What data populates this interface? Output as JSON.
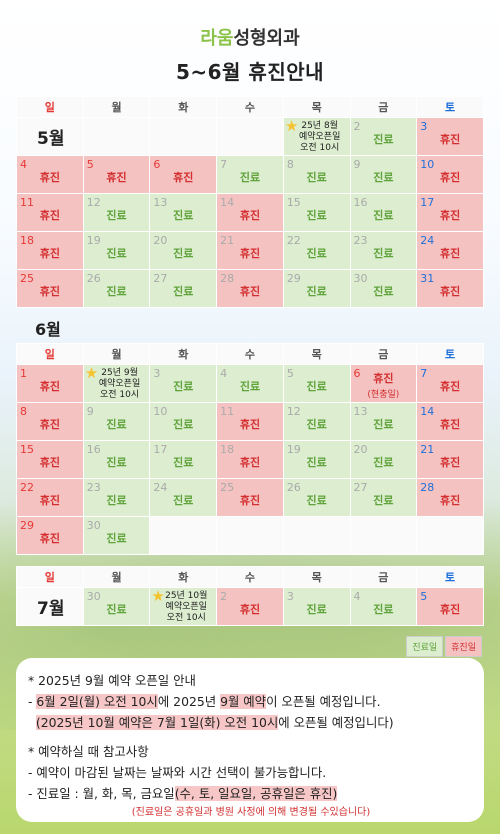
{
  "header": {
    "brand_green": "라움",
    "brand_dark": "성형외과",
    "title": "5~6월 휴진안내"
  },
  "weekdays": [
    "일",
    "월",
    "화",
    "수",
    "목",
    "금",
    "토"
  ],
  "status": {
    "off": "휴진",
    "on": "진료"
  },
  "may": {
    "label": "5월",
    "note": {
      "star": "★",
      "line1": "25년 8월",
      "line2": "예약오픈일",
      "line3": "오전 10시"
    },
    "days": [
      "2",
      "3",
      "4",
      "5",
      "6",
      "7",
      "8",
      "9",
      "10",
      "11",
      "12",
      "13",
      "14",
      "15",
      "16",
      "17",
      "18",
      "19",
      "20",
      "21",
      "22",
      "23",
      "24",
      "25",
      "26",
      "27",
      "28",
      "29",
      "30",
      "31"
    ]
  },
  "june": {
    "label": "6월",
    "note": {
      "star": "★",
      "line1": "25년 9월",
      "line2": "예약오픈일",
      "line3": "오전 10시"
    },
    "holiday_sub": "(현충일)",
    "days": [
      "1",
      "3",
      "4",
      "5",
      "6",
      "7",
      "8",
      "9",
      "10",
      "11",
      "12",
      "13",
      "14",
      "15",
      "16",
      "17",
      "18",
      "19",
      "20",
      "21",
      "22",
      "23",
      "24",
      "25",
      "26",
      "27",
      "28",
      "29",
      "30"
    ]
  },
  "july": {
    "label": "7월",
    "note": {
      "star": "★",
      "line1": "25년 10월",
      "line2": "예약오픈일",
      "line3": "오전 10시"
    },
    "days": [
      "30",
      "2",
      "3",
      "4",
      "5"
    ]
  },
  "legend": {
    "on": "진료일",
    "off": "휴진일"
  },
  "info": {
    "line1": "* 2025년 9월 예약 오픈일 안내",
    "line2_a": "- ",
    "line2_b": "6월 2일(월) 오전 10시",
    "line2_c": "에 2025년 ",
    "line2_d": "9월 예약",
    "line2_e": "이 오픈될 예정입니다.",
    "line3_a": "(2025년 10월 예약은 7월 1일(화) 오전 10시",
    "line3_b": "에 오픈될 예정입니다)",
    "line4": "* 예약하실 때 참고사항",
    "line5": "- 예약이 마감된 날짜는 날짜와 시간 선택이 불가능합니다.",
    "line6_a": "- 진료일 : 월, 화, 목, 금요일",
    "line6_b": "(수, 토, 일요일, 공휴일은 휴진)",
    "line7": "(진료일은 공휴일과 병원 사정에 의해 변경될 수있습니다)"
  },
  "colors": {
    "off_bg": "#f5c2c2",
    "on_bg": "#dcedd0",
    "off_text": "#d32f2f",
    "on_text": "#5fa33a",
    "sunday": "#e53935",
    "saturday": "#1e6fd9"
  }
}
